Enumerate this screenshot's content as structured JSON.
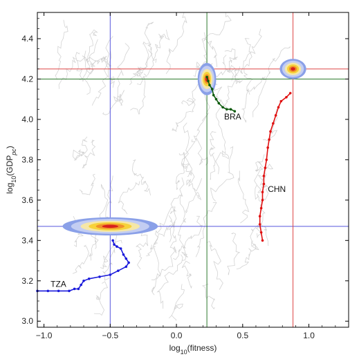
{
  "chart_data": {
    "type": "line",
    "xlabel": "log10(fitness)",
    "ylabel": "log10(GDPpc)",
    "xlabel_parts": {
      "base": "log",
      "sub": "10",
      "rest": "(fitness)"
    },
    "ylabel_parts": {
      "base": "log",
      "sub": "10",
      "mid": "(GDP",
      "sub2": "pc",
      "end": ")"
    },
    "xlim": [
      -1.05,
      1.3
    ],
    "ylim": [
      2.97,
      4.53
    ],
    "xticks": [
      -1.0,
      -0.5,
      0.0,
      0.5,
      1.0
    ],
    "xtick_labels": [
      "−1.0",
      "−0.5",
      "0.0",
      "0.5",
      "1.0"
    ],
    "yticks": [
      3.0,
      3.2,
      3.4,
      3.6,
      3.8,
      4.0,
      4.2,
      4.4
    ],
    "ytick_labels": [
      "3.0",
      "3.2",
      "3.4",
      "3.6",
      "3.8",
      "4.0",
      "4.2",
      "4.4"
    ],
    "colors": {
      "TZA": "#1a1adb",
      "BRA": "#0c5a0c",
      "CHN": "#e01010",
      "background": "#c8c8c8"
    },
    "attractors": [
      {
        "x": -0.5,
        "y": 3.47,
        "rx": 0.36,
        "ry": 0.045,
        "line_color": "#5555dd"
      },
      {
        "x": 0.23,
        "y": 4.2,
        "rx": 0.07,
        "ry": 0.08,
        "line_color": "#2c7a2c"
      },
      {
        "x": 0.88,
        "y": 4.25,
        "rx": 0.1,
        "ry": 0.05,
        "line_color": "#dd4444"
      }
    ],
    "crosshair_lines": [
      {
        "orient": "v",
        "value": -0.5,
        "color": "#5555dd"
      },
      {
        "orient": "h",
        "value": 3.47,
        "color": "#5555dd"
      },
      {
        "orient": "v",
        "value": 0.23,
        "color": "#2c7a2c"
      },
      {
        "orient": "h",
        "value": 4.2,
        "color": "#2c7a2c"
      },
      {
        "orient": "v",
        "value": 0.88,
        "color": "#dd4444"
      },
      {
        "orient": "h",
        "value": 4.25,
        "color": "#dd4444"
      }
    ],
    "series": [
      {
        "name": "TZA",
        "label_x": -0.95,
        "label_y": 3.17,
        "x": [
          -1.05,
          -0.97,
          -0.89,
          -0.81,
          -0.77,
          -0.74,
          -0.72,
          -0.7,
          -0.66,
          -0.58,
          -0.5,
          -0.44,
          -0.38,
          -0.36,
          -0.38,
          -0.4,
          -0.42,
          -0.45,
          -0.47,
          -0.48
        ],
        "y": [
          3.15,
          3.15,
          3.15,
          3.15,
          3.16,
          3.16,
          3.18,
          3.2,
          3.21,
          3.22,
          3.23,
          3.25,
          3.27,
          3.29,
          3.31,
          3.33,
          3.36,
          3.37,
          3.38,
          3.4
        ]
      },
      {
        "name": "BRA",
        "label_x": 0.36,
        "label_y": 4.0,
        "x": [
          0.23,
          0.24,
          0.25,
          0.27,
          0.28,
          0.3,
          0.32,
          0.35,
          0.38,
          0.41,
          0.44
        ],
        "y": [
          4.21,
          4.19,
          4.17,
          4.15,
          4.12,
          4.1,
          4.08,
          4.06,
          4.05,
          4.05,
          4.04
        ]
      },
      {
        "name": "CHN",
        "label_x": 0.69,
        "label_y": 3.64,
        "x": [
          0.65,
          0.64,
          0.63,
          0.63,
          0.64,
          0.65,
          0.65,
          0.66,
          0.66,
          0.67,
          0.68,
          0.69,
          0.7,
          0.71,
          0.73,
          0.75,
          0.77,
          0.79,
          0.83,
          0.86
        ],
        "y": [
          3.4,
          3.44,
          3.48,
          3.52,
          3.56,
          3.6,
          3.64,
          3.68,
          3.72,
          3.76,
          3.8,
          3.86,
          3.9,
          3.94,
          3.98,
          4.02,
          4.06,
          4.09,
          4.11,
          4.13
        ]
      }
    ],
    "grid": false
  }
}
